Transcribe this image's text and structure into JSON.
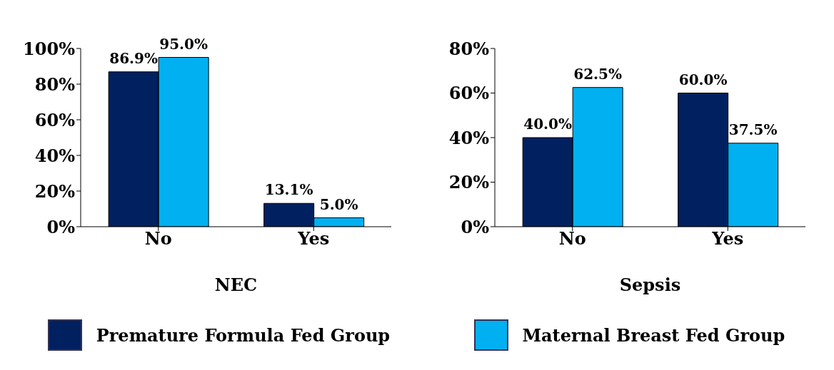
{
  "chart_data": [
    {
      "type": "bar",
      "xlabel": "NEC",
      "categories": [
        "No",
        "Yes"
      ],
      "ylim": [
        0,
        100
      ],
      "yticks": [
        {
          "value": 0,
          "label": "0%"
        },
        {
          "value": 20,
          "label": "20%"
        },
        {
          "value": 40,
          "label": "40%"
        },
        {
          "value": 60,
          "label": "60%"
        },
        {
          "value": 80,
          "label": "80%"
        },
        {
          "value": 100,
          "label": "100%"
        }
      ],
      "grid": false,
      "legend": "bottom",
      "series": [
        {
          "name": "Premature Formula Fed Group",
          "color": "#002060",
          "values": [
            86.9,
            13.1
          ],
          "value_labels": [
            "86.9%",
            "13.1%"
          ]
        },
        {
          "name": "Maternal Breast Fed Group",
          "color": "#00b0f0",
          "values": [
            95.0,
            5.0
          ],
          "value_labels": [
            "95.0%",
            "5.0%"
          ]
        }
      ]
    },
    {
      "type": "bar",
      "xlabel": "Sepsis",
      "categories": [
        "No",
        "Yes"
      ],
      "ylim": [
        0,
        80
      ],
      "yticks": [
        {
          "value": 0,
          "label": "0%"
        },
        {
          "value": 20,
          "label": "20%"
        },
        {
          "value": 40,
          "label": "40%"
        },
        {
          "value": 60,
          "label": "60%"
        },
        {
          "value": 80,
          "label": "80%"
        }
      ],
      "grid": false,
      "legend": "bottom",
      "series": [
        {
          "name": "Premature Formula Fed Group",
          "color": "#002060",
          "values": [
            40.0,
            60.0
          ],
          "value_labels": [
            "40.0%",
            "60.0%"
          ]
        },
        {
          "name": "Maternal Breast Fed Group",
          "color": "#00b0f0",
          "values": [
            62.5,
            37.5
          ],
          "value_labels": [
            "62.5%",
            "37.5%"
          ]
        }
      ]
    }
  ]
}
